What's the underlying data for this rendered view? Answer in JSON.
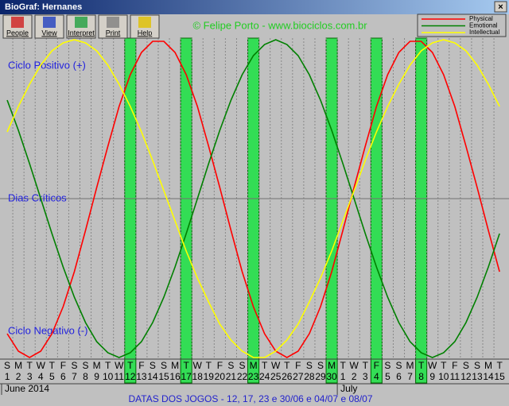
{
  "window": {
    "title": "BioGraf: Hernanes"
  },
  "toolbar": {
    "buttons": [
      "People",
      "View",
      "Interpret",
      "Print",
      "Help"
    ]
  },
  "watermark": "© Felipe Porto - www.biociclos.com.br",
  "footer": "DATAS DOS JOGOS - 12, 17, 23 e 30/06 e 04/07 e 08/07",
  "chart_data": {
    "type": "line",
    "zone_labels": {
      "positive": "Ciclo Positivo (+)",
      "critical": "Dias Críticos",
      "negative": "Ciclo Negativo (-)"
    },
    "month_labels": [
      "June 2014",
      "July"
    ],
    "weekdays": [
      "S",
      "M",
      "T",
      "W",
      "T",
      "F",
      "S",
      "S",
      "M",
      "T",
      "W",
      "T",
      "F",
      "S",
      "S",
      "M",
      "T",
      "W",
      "T",
      "F",
      "S",
      "S",
      "M",
      "T",
      "W",
      "T",
      "F",
      "S",
      "S",
      "M",
      "T",
      "W",
      "T",
      "F",
      "S",
      "S",
      "M",
      "T",
      "W",
      "T",
      "F",
      "S",
      "S",
      "M",
      "T"
    ],
    "categories": [
      "1",
      "2",
      "3",
      "4",
      "5",
      "6",
      "7",
      "8",
      "9",
      "10",
      "11",
      "12",
      "13",
      "14",
      "15",
      "16",
      "17",
      "18",
      "19",
      "20",
      "21",
      "22",
      "23",
      "24",
      "25",
      "26",
      "27",
      "28",
      "29",
      "30",
      "1",
      "2",
      "3",
      "4",
      "5",
      "6",
      "7",
      "8",
      "9",
      "10",
      "11",
      "12",
      "13",
      "14",
      "15"
    ],
    "highlighted": [
      false,
      false,
      false,
      false,
      false,
      false,
      false,
      false,
      false,
      false,
      false,
      true,
      false,
      false,
      false,
      false,
      true,
      false,
      false,
      false,
      false,
      false,
      true,
      false,
      false,
      false,
      false,
      false,
      false,
      true,
      false,
      false,
      false,
      true,
      false,
      false,
      false,
      true,
      false,
      false,
      false,
      false,
      false,
      false,
      false
    ],
    "ylim": [
      -100,
      100
    ],
    "series": [
      {
        "name": "Physical",
        "color": "#ff0000",
        "values": [
          -85,
          -96,
          -100,
          -96,
          -85,
          -68,
          -46,
          -20,
          7,
          33,
          58,
          78,
          92,
          99,
          99,
          92,
          78,
          58,
          33,
          7,
          -20,
          -46,
          -68,
          -85,
          -96,
          -100,
          -96,
          -85,
          -68,
          -46,
          -20,
          7,
          33,
          58,
          78,
          92,
          99,
          99,
          92,
          78,
          58,
          33,
          7,
          -20,
          -46
        ]
      },
      {
        "name": "Emotional",
        "color": "#008000",
        "values": [
          62,
          43,
          22,
          0,
          -22,
          -43,
          -62,
          -78,
          -90,
          -97,
          -100,
          -97,
          -90,
          -78,
          -62,
          -43,
          -22,
          0,
          22,
          43,
          62,
          78,
          90,
          97,
          100,
          97,
          90,
          78,
          62,
          43,
          22,
          0,
          -22,
          -43,
          -62,
          -78,
          -90,
          -97,
          -100,
          -97,
          -90,
          -78,
          -62,
          -43,
          -22
        ]
      },
      {
        "name": "Intellectual",
        "color": "#ffff00",
        "values": [
          42,
          58,
          72,
          84,
          93,
          98,
          100,
          98,
          93,
          84,
          72,
          58,
          42,
          24,
          5,
          -14,
          -33,
          -50,
          -65,
          -79,
          -89,
          -96,
          -100,
          -100,
          -96,
          -89,
          -79,
          -65,
          -50,
          -33,
          -14,
          5,
          24,
          42,
          58,
          72,
          84,
          93,
          98,
          100,
          98,
          93,
          84,
          72,
          58
        ]
      }
    ]
  }
}
